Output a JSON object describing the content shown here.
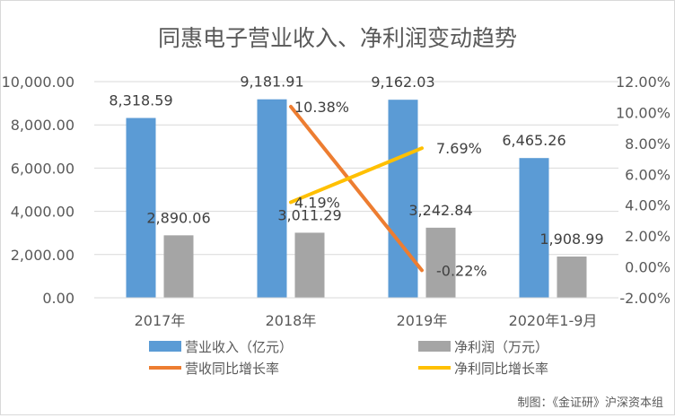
{
  "chart_data": {
    "type": "bar",
    "title": "同惠电子营业收入、净利润变动趋势",
    "categories": [
      "2017年",
      "2018年",
      "2019年",
      "2020年1-9月"
    ],
    "series": [
      {
        "name": "营业收入（亿元）",
        "type": "bar",
        "axis": "left",
        "color": "#5b9bd5",
        "values": [
          8318.59,
          9181.91,
          9162.03,
          6465.26
        ],
        "labels": [
          "8,318.59",
          "9,181.91",
          "9,162.03",
          "6,465.26"
        ]
      },
      {
        "name": "净利润（万元）",
        "type": "bar",
        "axis": "left",
        "color": "#a5a5a5",
        "values": [
          2890.06,
          3011.29,
          3242.84,
          1908.99
        ],
        "labels": [
          "2,890.06",
          "3,011.29",
          "3,242.84",
          "1,908.99"
        ]
      },
      {
        "name": "营收同比增长率",
        "type": "line",
        "axis": "right",
        "color": "#ed7d31",
        "values": [
          null,
          10.38,
          -0.22,
          null
        ],
        "labels": [
          null,
          "10.38%",
          "-0.22%",
          null
        ]
      },
      {
        "name": "净利同比增长率",
        "type": "line",
        "axis": "right",
        "color": "#ffc000",
        "values": [
          null,
          4.19,
          7.69,
          null
        ],
        "labels": [
          null,
          "4.19%",
          "7.69%",
          null
        ]
      }
    ],
    "ylim": [
      0,
      10000
    ],
    "yticks": [
      "0.00",
      "2,000.00",
      "4,000.00",
      "6,000.00",
      "8,000.00",
      "10,000.00"
    ],
    "y2lim": [
      -2,
      12
    ],
    "y2ticks": [
      "-2.00%",
      "0.00%",
      "2.00%",
      "4.00%",
      "6.00%",
      "8.00%",
      "10.00%",
      "12.00%"
    ],
    "grid": true,
    "legend": "bottom",
    "source_note": "制图：《金证研》沪深资本组"
  }
}
